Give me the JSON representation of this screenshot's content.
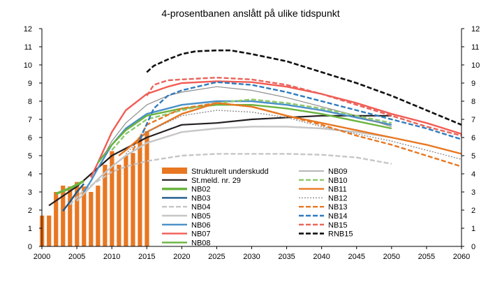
{
  "chart_data": {
    "type": "line",
    "title": "4-prosentbanen anslått på ulike tidspunkt",
    "xlabel": "",
    "ylabel": "",
    "xlim": [
      2000,
      2060
    ],
    "ylim": [
      0,
      12
    ],
    "x_ticks": [
      2000,
      2005,
      2010,
      2015,
      2020,
      2025,
      2030,
      2035,
      2040,
      2045,
      2050,
      2055,
      2060
    ],
    "y_ticks": [
      0,
      1,
      2,
      3,
      4,
      5,
      6,
      7,
      8,
      9,
      10,
      11,
      12
    ],
    "grid": false,
    "bars": {
      "name": "Strukturelt underskudd",
      "color": "#E87722",
      "x": [
        2000,
        2001,
        2002,
        2003,
        2004,
        2005,
        2006,
        2007,
        2008,
        2009,
        2010,
        2011,
        2012,
        2013,
        2014,
        2015
      ],
      "values": [
        1.7,
        1.7,
        3.0,
        3.35,
        3.3,
        3.55,
        3.3,
        3.0,
        3.35,
        4.5,
        5.25,
        4.5,
        5.0,
        5.15,
        6.0,
        6.35
      ]
    },
    "series": [
      {
        "name": "St.meld. nr. 29",
        "color": "#231F20",
        "style": "solid",
        "width": 2.2,
        "x": [
          2001,
          2005,
          2010,
          2015,
          2020,
          2025,
          2030,
          2035,
          2040,
          2045,
          2050
        ],
        "y": [
          2.25,
          3.3,
          5.0,
          6.0,
          6.7,
          6.8,
          7.0,
          7.1,
          7.2,
          7.2,
          7.2
        ]
      },
      {
        "name": "NB02",
        "color": "#6AB43E",
        "style": "solid",
        "width": 3.5,
        "x": [
          2002,
          2003,
          2004,
          2005,
          2006
        ],
        "y": [
          2.9,
          3.05,
          3.2,
          3.4,
          3.6
        ]
      },
      {
        "name": "NB03",
        "color": "#1B5A8C",
        "style": "solid",
        "width": 2.4,
        "x": [
          2003,
          2004,
          2005,
          2006
        ],
        "y": [
          1.95,
          2.45,
          3.0,
          3.45
        ]
      },
      {
        "name": "NB04",
        "color": "#C6C6C6",
        "style": "dashed",
        "width": 2.4,
        "x": [
          2004,
          2005,
          2006,
          2008,
          2010,
          2012,
          2015,
          2020,
          2025,
          2030,
          2035,
          2040,
          2045,
          2050
        ],
        "y": [
          2.3,
          2.7,
          3.1,
          3.6,
          4.1,
          4.4,
          4.7,
          5.0,
          5.1,
          5.1,
          5.1,
          5.05,
          4.9,
          4.55
        ]
      },
      {
        "name": "NB05",
        "color": "#C6C6C6",
        "style": "solid",
        "width": 2.4,
        "x": [
          2005,
          2006,
          2008,
          2010,
          2012,
          2015,
          2020,
          2025,
          2030,
          2035,
          2040,
          2045,
          2050
        ],
        "y": [
          2.5,
          2.9,
          3.7,
          4.4,
          5.0,
          5.7,
          6.3,
          6.5,
          6.6,
          6.6,
          6.5,
          6.3,
          6.0
        ]
      },
      {
        "name": "NB06",
        "color": "#4A90C8",
        "style": "solid",
        "width": 2.4,
        "x": [
          2006,
          2007,
          2008,
          2010,
          2012,
          2015,
          2020,
          2025,
          2030,
          2035,
          2040,
          2045,
          2050
        ],
        "y": [
          3.0,
          3.6,
          4.3,
          5.6,
          6.5,
          7.3,
          7.8,
          8.0,
          8.0,
          7.8,
          7.5,
          7.1,
          6.7
        ]
      },
      {
        "name": "NB07",
        "color": "#F25C54",
        "style": "solid",
        "width": 2.4,
        "x": [
          2007,
          2008,
          2010,
          2012,
          2015,
          2018,
          2020,
          2025,
          2030,
          2035,
          2040,
          2045,
          2050,
          2055,
          2060
        ],
        "y": [
          3.8,
          4.6,
          6.3,
          7.5,
          8.4,
          8.8,
          9.0,
          9.1,
          9.05,
          8.8,
          8.4,
          7.9,
          7.3,
          6.8,
          6.2
        ]
      },
      {
        "name": "NB08",
        "color": "#6AB43E",
        "style": "solid",
        "width": 2.4,
        "x": [
          2008,
          2010,
          2012,
          2015,
          2020,
          2025,
          2030,
          2035,
          2040,
          2045,
          2050
        ],
        "y": [
          4.6,
          5.6,
          6.4,
          7.2,
          7.6,
          7.8,
          7.8,
          7.6,
          7.3,
          6.9,
          6.5
        ]
      },
      {
        "name": "NB09",
        "color": "#8C8C8C",
        "style": "solid",
        "width": 1.2,
        "x": [
          2009,
          2010,
          2012,
          2015,
          2018,
          2020,
          2025,
          2030,
          2035,
          2040,
          2045,
          2050
        ],
        "y": [
          5.1,
          5.8,
          6.8,
          7.8,
          8.3,
          8.5,
          8.8,
          8.6,
          8.2,
          7.7,
          7.2,
          6.6
        ]
      },
      {
        "name": "NB10",
        "color": "#8DC86E",
        "style": "dashed",
        "width": 2.4,
        "x": [
          2010,
          2012,
          2015,
          2020,
          2025,
          2030,
          2035,
          2040,
          2045,
          2050
        ],
        "y": [
          5.3,
          6.2,
          7.0,
          7.5,
          7.9,
          8.1,
          7.9,
          7.6,
          7.2,
          6.8
        ]
      },
      {
        "name": "NB11",
        "color": "#E87722",
        "style": "solid",
        "width": 2.4,
        "x": [
          2011,
          2012,
          2015,
          2020,
          2025,
          2030,
          2035,
          2040,
          2045,
          2050,
          2055,
          2060
        ],
        "y": [
          5.0,
          5.3,
          6.3,
          7.3,
          7.9,
          7.7,
          7.2,
          6.8,
          6.4,
          6.0,
          5.6,
          5.1
        ]
      },
      {
        "name": "NB12",
        "color": "#8C8C8C",
        "style": "dotted",
        "width": 1.4,
        "x": [
          2012,
          2015,
          2020,
          2025,
          2030,
          2035,
          2040,
          2045,
          2050,
          2055,
          2060
        ],
        "y": [
          5.1,
          6.3,
          7.2,
          7.5,
          7.4,
          7.1,
          6.6,
          6.2,
          5.8,
          5.3,
          4.8
        ]
      },
      {
        "name": "NB13",
        "color": "#E87722",
        "style": "dashed",
        "width": 2.4,
        "x": [
          2013,
          2015,
          2020,
          2025,
          2030,
          2035,
          2040,
          2045,
          2050,
          2055,
          2060
        ],
        "y": [
          5.3,
          6.7,
          7.6,
          7.9,
          7.7,
          7.2,
          6.7,
          6.1,
          5.6,
          5.0,
          4.4
        ]
      },
      {
        "name": "NB14",
        "color": "#2F7BBF",
        "style": "dashed",
        "width": 2.4,
        "x": [
          2014,
          2016,
          2018,
          2020,
          2025,
          2030,
          2035,
          2040,
          2045,
          2050,
          2055,
          2060
        ],
        "y": [
          5.9,
          7.6,
          8.3,
          8.6,
          9.05,
          8.9,
          8.5,
          8.0,
          7.5,
          7.0,
          6.5,
          5.9
        ]
      },
      {
        "name": "NB15",
        "color": "#E8635A",
        "style": "dashed",
        "width": 2.4,
        "x": [
          2015,
          2016,
          2018,
          2020,
          2025,
          2030,
          2035,
          2040,
          2045,
          2050,
          2055,
          2060
        ],
        "y": [
          8.3,
          8.9,
          9.15,
          9.2,
          9.3,
          9.2,
          8.9,
          8.4,
          7.8,
          7.2,
          6.6,
          6.1
        ]
      },
      {
        "name": "RNB15",
        "color": "#111111",
        "style": "dashed",
        "width": 2.6,
        "x": [
          2015,
          2016,
          2018,
          2020,
          2022,
          2025,
          2027,
          2030,
          2035,
          2040,
          2045,
          2050,
          2055,
          2060
        ],
        "y": [
          9.6,
          9.95,
          10.3,
          10.6,
          10.75,
          10.8,
          10.8,
          10.6,
          10.2,
          9.6,
          9.0,
          8.3,
          7.5,
          6.7
        ]
      }
    ],
    "legend": {
      "col1": [
        "Strukturelt underskudd",
        "St.meld. nr. 29",
        "NB02",
        "NB03",
        "NB04",
        "NB05",
        "NB06",
        "NB07",
        "NB08"
      ],
      "col2": [
        "NB09",
        "NB10",
        "NB11",
        "NB12",
        "NB13",
        "NB14",
        "NB15",
        "RNB15"
      ]
    }
  }
}
